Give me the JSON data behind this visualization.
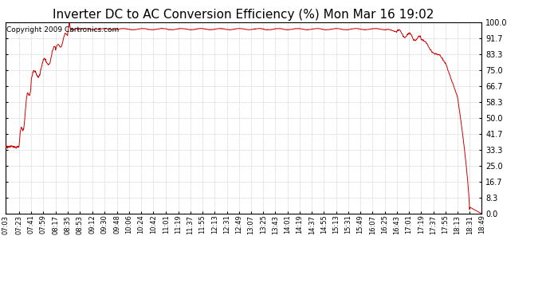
{
  "title": "Inverter DC to AC Conversion Efficiency (%) Mon Mar 16 19:02",
  "copyright_text": "Copyright 2009 Cartronics.com",
  "ylabel_right_ticks": [
    0.0,
    8.3,
    16.7,
    25.0,
    33.3,
    41.7,
    50.0,
    58.3,
    66.7,
    75.0,
    83.3,
    91.7,
    100.0
  ],
  "ymin": 0.0,
  "ymax": 100.0,
  "line_color": "#cc0000",
  "bg_color": "#ffffff",
  "grid_color": "#bbbbbb",
  "title_fontsize": 11,
  "copyright_fontsize": 6.5,
  "x_tick_labels": [
    "07:03",
    "07:23",
    "07:41",
    "07:59",
    "08:17",
    "08:35",
    "08:53",
    "09:12",
    "09:30",
    "09:48",
    "10:06",
    "10:24",
    "10:42",
    "11:01",
    "11:19",
    "11:37",
    "11:55",
    "12:13",
    "12:31",
    "12:49",
    "13:07",
    "13:25",
    "13:43",
    "14:01",
    "14:19",
    "14:37",
    "14:55",
    "15:13",
    "15:31",
    "15:49",
    "16:07",
    "16:25",
    "16:43",
    "17:01",
    "17:19",
    "17:37",
    "17:55",
    "18:13",
    "18:31",
    "18:49"
  ]
}
